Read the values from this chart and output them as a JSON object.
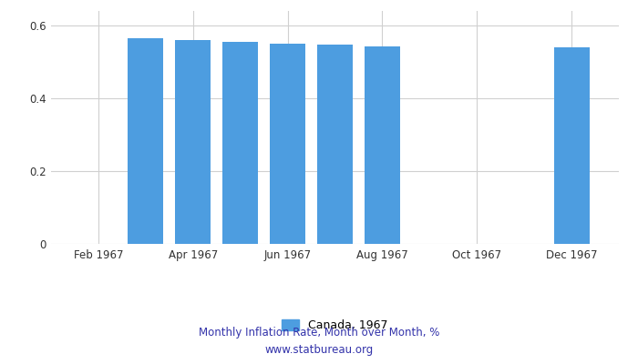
{
  "month_positions": [
    3,
    4,
    5,
    6,
    7,
    8,
    12
  ],
  "values": [
    0.565,
    0.56,
    0.555,
    0.55,
    0.548,
    0.543,
    0.54
  ],
  "bar_color": "#4d9de0",
  "xtick_positions": [
    2,
    4,
    6,
    8,
    10,
    12
  ],
  "xtick_labels": [
    "Feb 1967",
    "Apr 1967",
    "Jun 1967",
    "Aug 1967",
    "Oct 1967",
    "Dec 1967"
  ],
  "ytick_positions": [
    0,
    0.2,
    0.4,
    0.6
  ],
  "ytick_labels": [
    "0",
    "0.2",
    "0.4",
    "0.6"
  ],
  "ylim": [
    0,
    0.64
  ],
  "xlim": [
    1.0,
    13.0
  ],
  "legend_label": "Canada, 1967",
  "subtitle1": "Monthly Inflation Rate, Month over Month, %",
  "subtitle2": "www.statbureau.org",
  "background_color": "#ffffff",
  "grid_color": "#d0d0d0",
  "bar_width": 0.75
}
